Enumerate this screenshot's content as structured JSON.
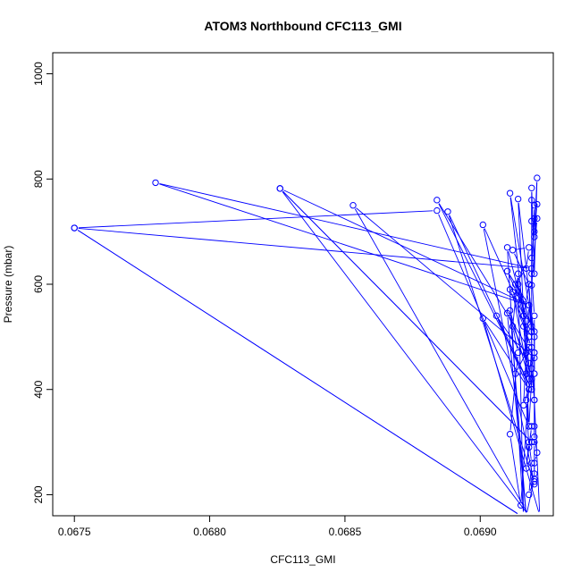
{
  "chart_data": {
    "type": "scatter",
    "title": "ATOM3 Northbound CFC113_GMI",
    "xlabel": "CFC113_GMI",
    "ylabel": "Pressure (mbar)",
    "xlim": [
      0.06742,
      0.06927
    ],
    "ylim": [
      1040,
      160
    ],
    "y_reversed": true,
    "x_ticks": [
      {
        "value": 0.0675,
        "label": "0.0675"
      },
      {
        "value": 0.068,
        "label": "0.0680"
      },
      {
        "value": 0.0685,
        "label": "0.0685"
      },
      {
        "value": 0.069,
        "label": "0.0690"
      }
    ],
    "y_ticks": [
      {
        "value": 200,
        "label": "200"
      },
      {
        "value": 400,
        "label": "400"
      },
      {
        "value": 600,
        "label": "600"
      },
      {
        "value": 800,
        "label": "800"
      },
      {
        "value": 1000,
        "label": "1000"
      }
    ],
    "grid": false,
    "legend": "none",
    "colors": {
      "series": "#0000ff",
      "axes": "#000000"
    },
    "series": [
      {
        "style": "line+open-circle",
        "points": [
          [
            0.06917,
            160
          ],
          [
            0.0692,
            230
          ],
          [
            0.06918,
            200
          ],
          [
            0.06919,
            260
          ],
          [
            0.06918,
            300
          ],
          [
            0.06917,
            250
          ],
          [
            0.06919,
            330
          ],
          [
            0.06918,
            290
          ],
          [
            0.06917,
            380
          ],
          [
            0.06918,
            330
          ],
          [
            0.06919,
            420
          ],
          [
            0.06916,
            370
          ],
          [
            0.06917,
            470
          ],
          [
            0.06918,
            430
          ],
          [
            0.06916,
            520
          ],
          [
            0.06917,
            470
          ],
          [
            0.06918,
            560
          ],
          [
            0.06919,
            510
          ],
          [
            0.06918,
            600
          ],
          [
            0.06916,
            540
          ],
          [
            0.06917,
            430
          ],
          [
            0.06913,
            430
          ],
          [
            0.06918,
            480
          ],
          [
            0.06916,
            540
          ],
          [
            0.06913,
            600
          ],
          [
            0.06917,
            630
          ],
          [
            0.06918,
            670
          ],
          [
            0.06912,
            665
          ],
          [
            0.06918,
            600
          ],
          [
            0.06922,
            160
          ],
          [
            0.06901,
            535
          ],
          [
            0.06918,
            400
          ],
          [
            0.06906,
            540
          ],
          [
            0.06918,
            450
          ],
          [
            0.0691,
            545
          ],
          [
            0.06917,
            160
          ],
          [
            0.06911,
            550
          ],
          [
            0.06918,
            420
          ],
          [
            0.06912,
            585
          ],
          [
            0.06918,
            500
          ],
          [
            0.06914,
            600
          ],
          [
            0.06919,
            520
          ],
          [
            0.0691,
            625
          ],
          [
            0.06918,
            560
          ],
          [
            0.06911,
            590
          ],
          [
            0.06919,
            480
          ],
          [
            0.06915,
            180
          ],
          [
            0.06911,
            315
          ],
          [
            0.06914,
            470
          ],
          [
            0.06912,
            520
          ],
          [
            0.06914,
            620
          ],
          [
            0.06916,
            160
          ],
          [
            0.0691,
            670
          ],
          [
            0.06917,
            530
          ],
          [
            0.06901,
            713
          ],
          [
            0.0692,
            220
          ],
          [
            0.06888,
            738
          ],
          [
            0.06919,
            400
          ],
          [
            0.06884,
            760
          ],
          [
            0.0692,
            460
          ],
          [
            0.06853,
            750
          ],
          [
            0.06918,
            160
          ],
          [
            0.06826,
            782
          ],
          [
            0.06919,
            300
          ],
          [
            0.06826,
            782
          ],
          [
            0.06918,
            560
          ],
          [
            0.0678,
            793
          ],
          [
            0.06919,
            630
          ],
          [
            0.0675,
            707
          ],
          [
            0.06915,
            160
          ],
          [
            0.0675,
            707
          ],
          [
            0.06884,
            740
          ],
          [
            0.06918,
            330
          ],
          [
            0.06914,
            762
          ],
          [
            0.0692,
            500
          ],
          [
            0.06911,
            773
          ],
          [
            0.06919,
            400
          ],
          [
            0.06919,
            783
          ],
          [
            0.0692,
            620
          ],
          [
            0.06921,
            802
          ],
          [
            0.0692,
            700
          ],
          [
            0.0692,
            725
          ],
          [
            0.06921,
            752
          ],
          [
            0.06919,
            650
          ],
          [
            0.06919,
            598
          ],
          [
            0.06921,
            725
          ],
          [
            0.0692,
            690
          ],
          [
            0.06919,
            720
          ],
          [
            0.06919,
            760
          ],
          [
            0.0692,
            750
          ],
          [
            0.06919,
            620
          ],
          [
            0.0692,
            540
          ],
          [
            0.0692,
            470
          ],
          [
            0.06919,
            440
          ],
          [
            0.0692,
            380
          ],
          [
            0.0692,
            330
          ],
          [
            0.0692,
            310
          ],
          [
            0.06921,
            280
          ],
          [
            0.0692,
            260
          ],
          [
            0.0692,
            240
          ],
          [
            0.0692,
            225
          ],
          [
            0.0692,
            300
          ],
          [
            0.0692,
            380
          ],
          [
            0.0692,
            430
          ],
          [
            0.0692,
            470
          ],
          [
            0.0692,
            510
          ],
          [
            0.0692,
            430
          ]
        ]
      }
    ]
  }
}
